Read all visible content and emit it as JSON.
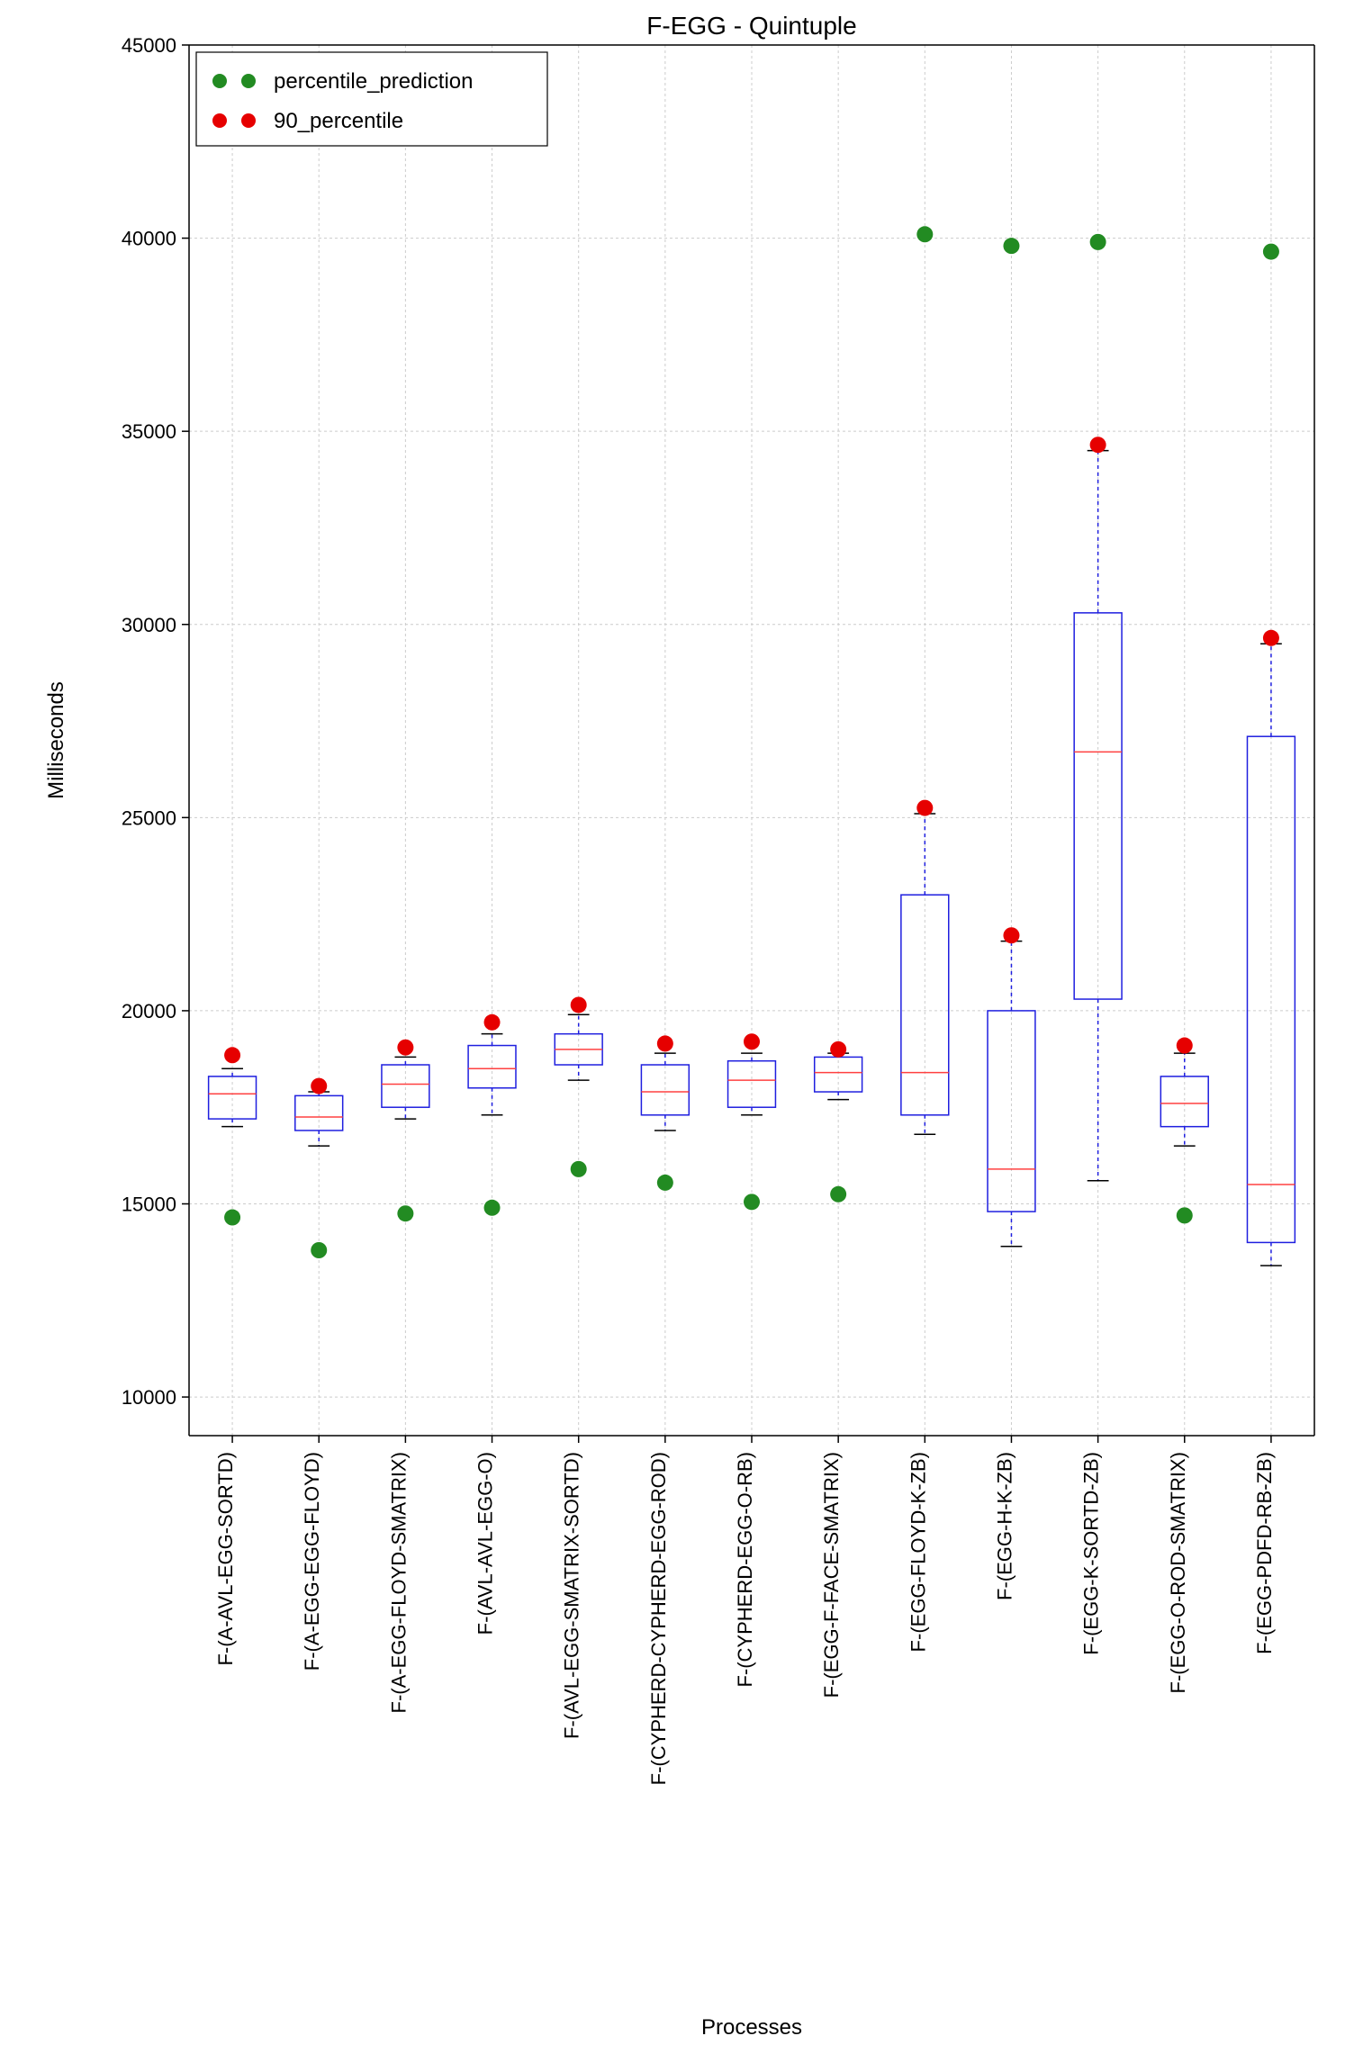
{
  "chart": {
    "type": "boxplot",
    "title": "F-EGG - Quintuple",
    "xlabel": "Processes",
    "ylabel": "Milliseconds",
    "background_color": "#ffffff",
    "grid_color": "#cccccc",
    "box_edge_color": "#1f1fdf",
    "median_color": "#ff4040",
    "whisker_color": "#1f1fdf",
    "cap_color": "#000000",
    "axis_color": "#000000",
    "ylim": [
      9000,
      45000
    ],
    "yticks": [
      10000,
      15000,
      20000,
      25000,
      30000,
      35000,
      40000,
      45000
    ],
    "title_fontsize": 28,
    "label_fontsize": 24,
    "tick_fontsize": 22,
    "box_width": 0.55,
    "legend": {
      "items": [
        {
          "label": "percentile_prediction",
          "color": "#228b22",
          "marker": "circle"
        },
        {
          "label": "90_percentile",
          "color": "#e60000",
          "marker": "circle"
        }
      ],
      "position": "upper-left",
      "fontsize": 24,
      "border_color": "#000000",
      "background_color": "#ffffff"
    },
    "categories": [
      "F-(A-AVL-EGG-SORTD)",
      "F-(A-EGG-EGG-FLOYD)",
      "F-(A-EGG-FLOYD-SMATRIX)",
      "F-(AVL-AVL-EGG-O)",
      "F-(AVL-EGG-SMATRIX-SORTD)",
      "F-(CYPHERD-CYPHERD-EGG-ROD)",
      "F-(CYPHERD-EGG-O-RB)",
      "F-(EGG-F-FACE-SMATRIX)",
      "F-(EGG-FLOYD-K-ZB)",
      "F-(EGG-H-K-ZB)",
      "F-(EGG-K-SORTD-ZB)",
      "F-(EGG-O-ROD-SMATRIX)",
      "F-(EGG-PDFD-RB-ZB)"
    ],
    "boxes": [
      {
        "q1": 17200,
        "median": 17850,
        "q3": 18300,
        "wlow": 17000,
        "whigh": 18500
      },
      {
        "q1": 16900,
        "median": 17250,
        "q3": 17800,
        "wlow": 16500,
        "whigh": 17900
      },
      {
        "q1": 17500,
        "median": 18100,
        "q3": 18600,
        "wlow": 17200,
        "whigh": 18800
      },
      {
        "q1": 18000,
        "median": 18500,
        "q3": 19100,
        "wlow": 17300,
        "whigh": 19400
      },
      {
        "q1": 18600,
        "median": 19000,
        "q3": 19400,
        "wlow": 18200,
        "whigh": 19900
      },
      {
        "q1": 17300,
        "median": 17900,
        "q3": 18600,
        "wlow": 16900,
        "whigh": 18900
      },
      {
        "q1": 17500,
        "median": 18200,
        "q3": 18700,
        "wlow": 17300,
        "whigh": 18900
      },
      {
        "q1": 17900,
        "median": 18400,
        "q3": 18800,
        "wlow": 17700,
        "whigh": 18900
      },
      {
        "q1": 17300,
        "median": 18400,
        "q3": 23000,
        "wlow": 16800,
        "whigh": 25100
      },
      {
        "q1": 14800,
        "median": 15900,
        "q3": 20000,
        "wlow": 13900,
        "whigh": 21800
      },
      {
        "q1": 20300,
        "median": 26700,
        "q3": 30300,
        "wlow": 15600,
        "whigh": 34500
      },
      {
        "q1": 17000,
        "median": 17600,
        "q3": 18300,
        "wlow": 16500,
        "whigh": 18900
      },
      {
        "q1": 14000,
        "median": 15500,
        "q3": 27100,
        "wlow": 13400,
        "whigh": 29500
      }
    ],
    "scatter_green": {
      "color": "#228b22",
      "values": [
        14650,
        13800,
        14750,
        14900,
        15900,
        15550,
        15050,
        15250,
        40100,
        39800,
        39900,
        14700,
        39650
      ]
    },
    "scatter_red": {
      "color": "#e60000",
      "values": [
        18850,
        18050,
        19050,
        19700,
        20150,
        19150,
        19200,
        19000,
        25250,
        21950,
        34650,
        19100,
        29650
      ]
    }
  }
}
